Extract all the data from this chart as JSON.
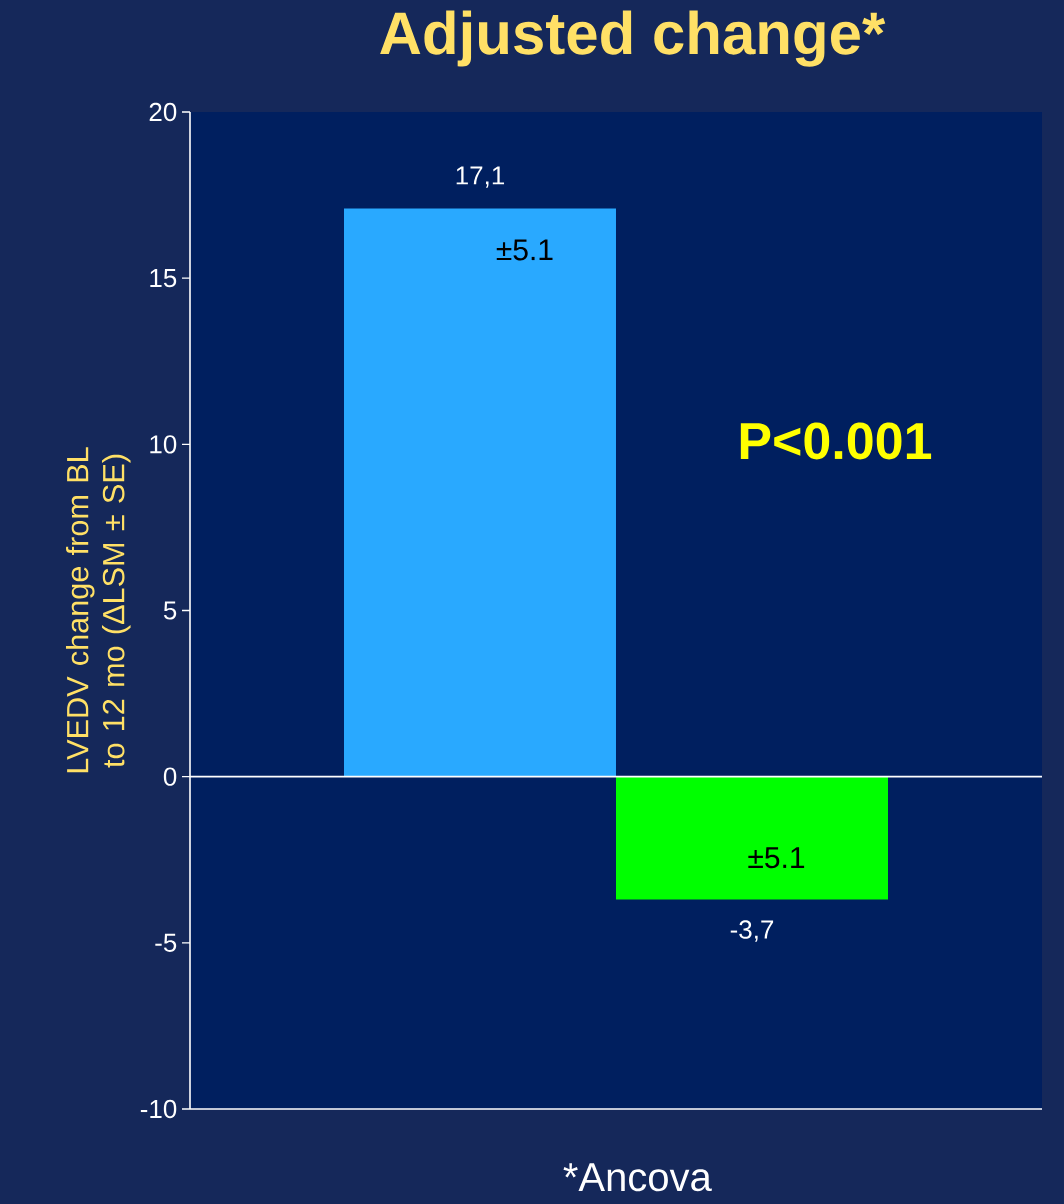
{
  "chart_data": {
    "type": "bar",
    "title": "Adjusted change*",
    "ylabel": "LVEDV change from BL to 12 mo (ΔLSM ± SE)",
    "categories": [
      null,
      null
    ],
    "values": [
      17.1,
      -3.7
    ],
    "colors": [
      "#29a9ff",
      "#00ff00"
    ],
    "value_labels": [
      "17,1",
      "-3,7"
    ],
    "ylim": [
      -10,
      20
    ],
    "yticks": [
      -10,
      -5,
      0,
      5,
      10,
      15,
      20
    ],
    "annotations": [
      "±5.1",
      "±5.1",
      "P<0.001",
      "*Ancova"
    ]
  }
}
